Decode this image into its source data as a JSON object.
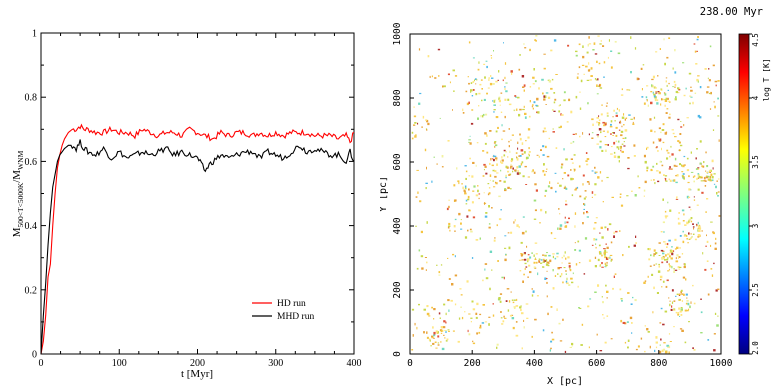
{
  "chart_data": [
    {
      "type": "line",
      "xlabel": "t [Myr]",
      "ylabel": "M",
      "ylabel_sub": "500<T<5000K",
      "ylabel_mid": "/M",
      "ylabel_sub2": "WNM",
      "xlim": [
        0,
        400
      ],
      "ylim": [
        0,
        1
      ],
      "x_ticks": [
        0,
        100,
        200,
        300,
        400
      ],
      "y_ticks": [
        0,
        0.2,
        0.4,
        0.6,
        0.8,
        1
      ],
      "x_tick_labels": [
        "0",
        "100",
        "200",
        "300",
        "400"
      ],
      "y_tick_labels": [
        "0",
        "0.2",
        "0.4",
        "0.6",
        "0.8",
        "1"
      ],
      "legend_position": "bottom-right",
      "series": [
        {
          "name": "HD run",
          "color": "#ff0000",
          "x": [
            0,
            3,
            6,
            9,
            12,
            15,
            18,
            21,
            24,
            27,
            30,
            35,
            40,
            45,
            50,
            55,
            60,
            70,
            80,
            90,
            100,
            110,
            120,
            130,
            140,
            150,
            160,
            170,
            180,
            190,
            200,
            210,
            220,
            230,
            240,
            250,
            260,
            270,
            280,
            290,
            300,
            310,
            320,
            330,
            340,
            350,
            360,
            370,
            380,
            390,
            395,
            400
          ],
          "values": [
            0.0,
            0.04,
            0.12,
            0.24,
            0.28,
            0.4,
            0.5,
            0.58,
            0.62,
            0.65,
            0.67,
            0.69,
            0.7,
            0.7,
            0.71,
            0.7,
            0.7,
            0.69,
            0.69,
            0.7,
            0.69,
            0.69,
            0.68,
            0.7,
            0.69,
            0.68,
            0.69,
            0.69,
            0.68,
            0.7,
            0.69,
            0.68,
            0.67,
            0.69,
            0.68,
            0.69,
            0.69,
            0.68,
            0.69,
            0.68,
            0.69,
            0.68,
            0.69,
            0.69,
            0.69,
            0.68,
            0.68,
            0.68,
            0.67,
            0.68,
            0.66,
            0.69
          ]
        },
        {
          "name": "MHD run",
          "color": "#000000",
          "x": [
            0,
            3,
            6,
            9,
            12,
            15,
            18,
            21,
            24,
            27,
            30,
            35,
            40,
            45,
            50,
            55,
            60,
            70,
            80,
            90,
            100,
            110,
            120,
            130,
            140,
            150,
            160,
            170,
            180,
            190,
            200,
            205,
            210,
            215,
            220,
            230,
            240,
            250,
            260,
            270,
            280,
            290,
            300,
            310,
            320,
            330,
            340,
            350,
            360,
            370,
            380,
            390,
            395,
            400
          ],
          "values": [
            0.0,
            0.12,
            0.22,
            0.34,
            0.44,
            0.52,
            0.56,
            0.6,
            0.62,
            0.63,
            0.64,
            0.65,
            0.65,
            0.64,
            0.66,
            0.64,
            0.63,
            0.62,
            0.64,
            0.61,
            0.63,
            0.61,
            0.62,
            0.63,
            0.62,
            0.63,
            0.64,
            0.62,
            0.63,
            0.62,
            0.61,
            0.59,
            0.57,
            0.59,
            0.6,
            0.62,
            0.61,
            0.62,
            0.63,
            0.63,
            0.61,
            0.63,
            0.62,
            0.61,
            0.63,
            0.65,
            0.63,
            0.64,
            0.63,
            0.62,
            0.62,
            0.6,
            0.63,
            0.6
          ]
        }
      ]
    },
    {
      "type": "heatmap",
      "title": "238.00 Myr",
      "xlabel": "X [pc]",
      "ylabel": "Y [pc]",
      "xlim": [
        0,
        1000
      ],
      "ylim": [
        0,
        1000
      ],
      "x_tick_labels": [
        "0",
        "200",
        "400",
        "600",
        "800",
        "1000"
      ],
      "y_tick_labels": [
        "0",
        "200",
        "400",
        "600",
        "800",
        "1000"
      ],
      "colorbar": {
        "label": "log T [K]",
        "tick_labels": [
          "2.0",
          "2.5",
          "3",
          "3.5",
          "4",
          "4.5"
        ],
        "range": [
          2.0,
          4.5
        ]
      }
    }
  ]
}
